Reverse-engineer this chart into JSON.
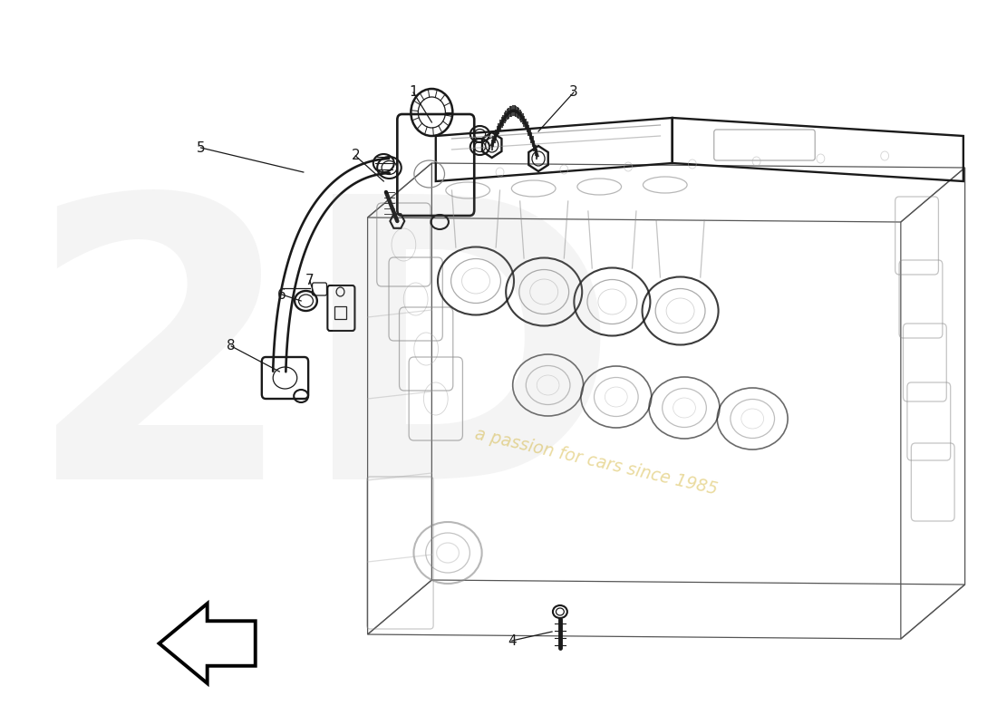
{
  "background_color": "#ffffff",
  "line_color": "#1a1a1a",
  "engine_color": "#555555",
  "light_color": "#888888",
  "lighter_color": "#aaaaaa",
  "watermark_text": "a passion for cars since 1985",
  "watermark_color": "#c8a000",
  "watermark_alpha": 0.38,
  "logo_color": "#cccccc",
  "logo_alpha": 0.18,
  "arrow_color": "#000000",
  "label_fontsize": 11,
  "lw_main": 1.5,
  "lw_thin": 0.9,
  "lw_heavy": 2.2
}
